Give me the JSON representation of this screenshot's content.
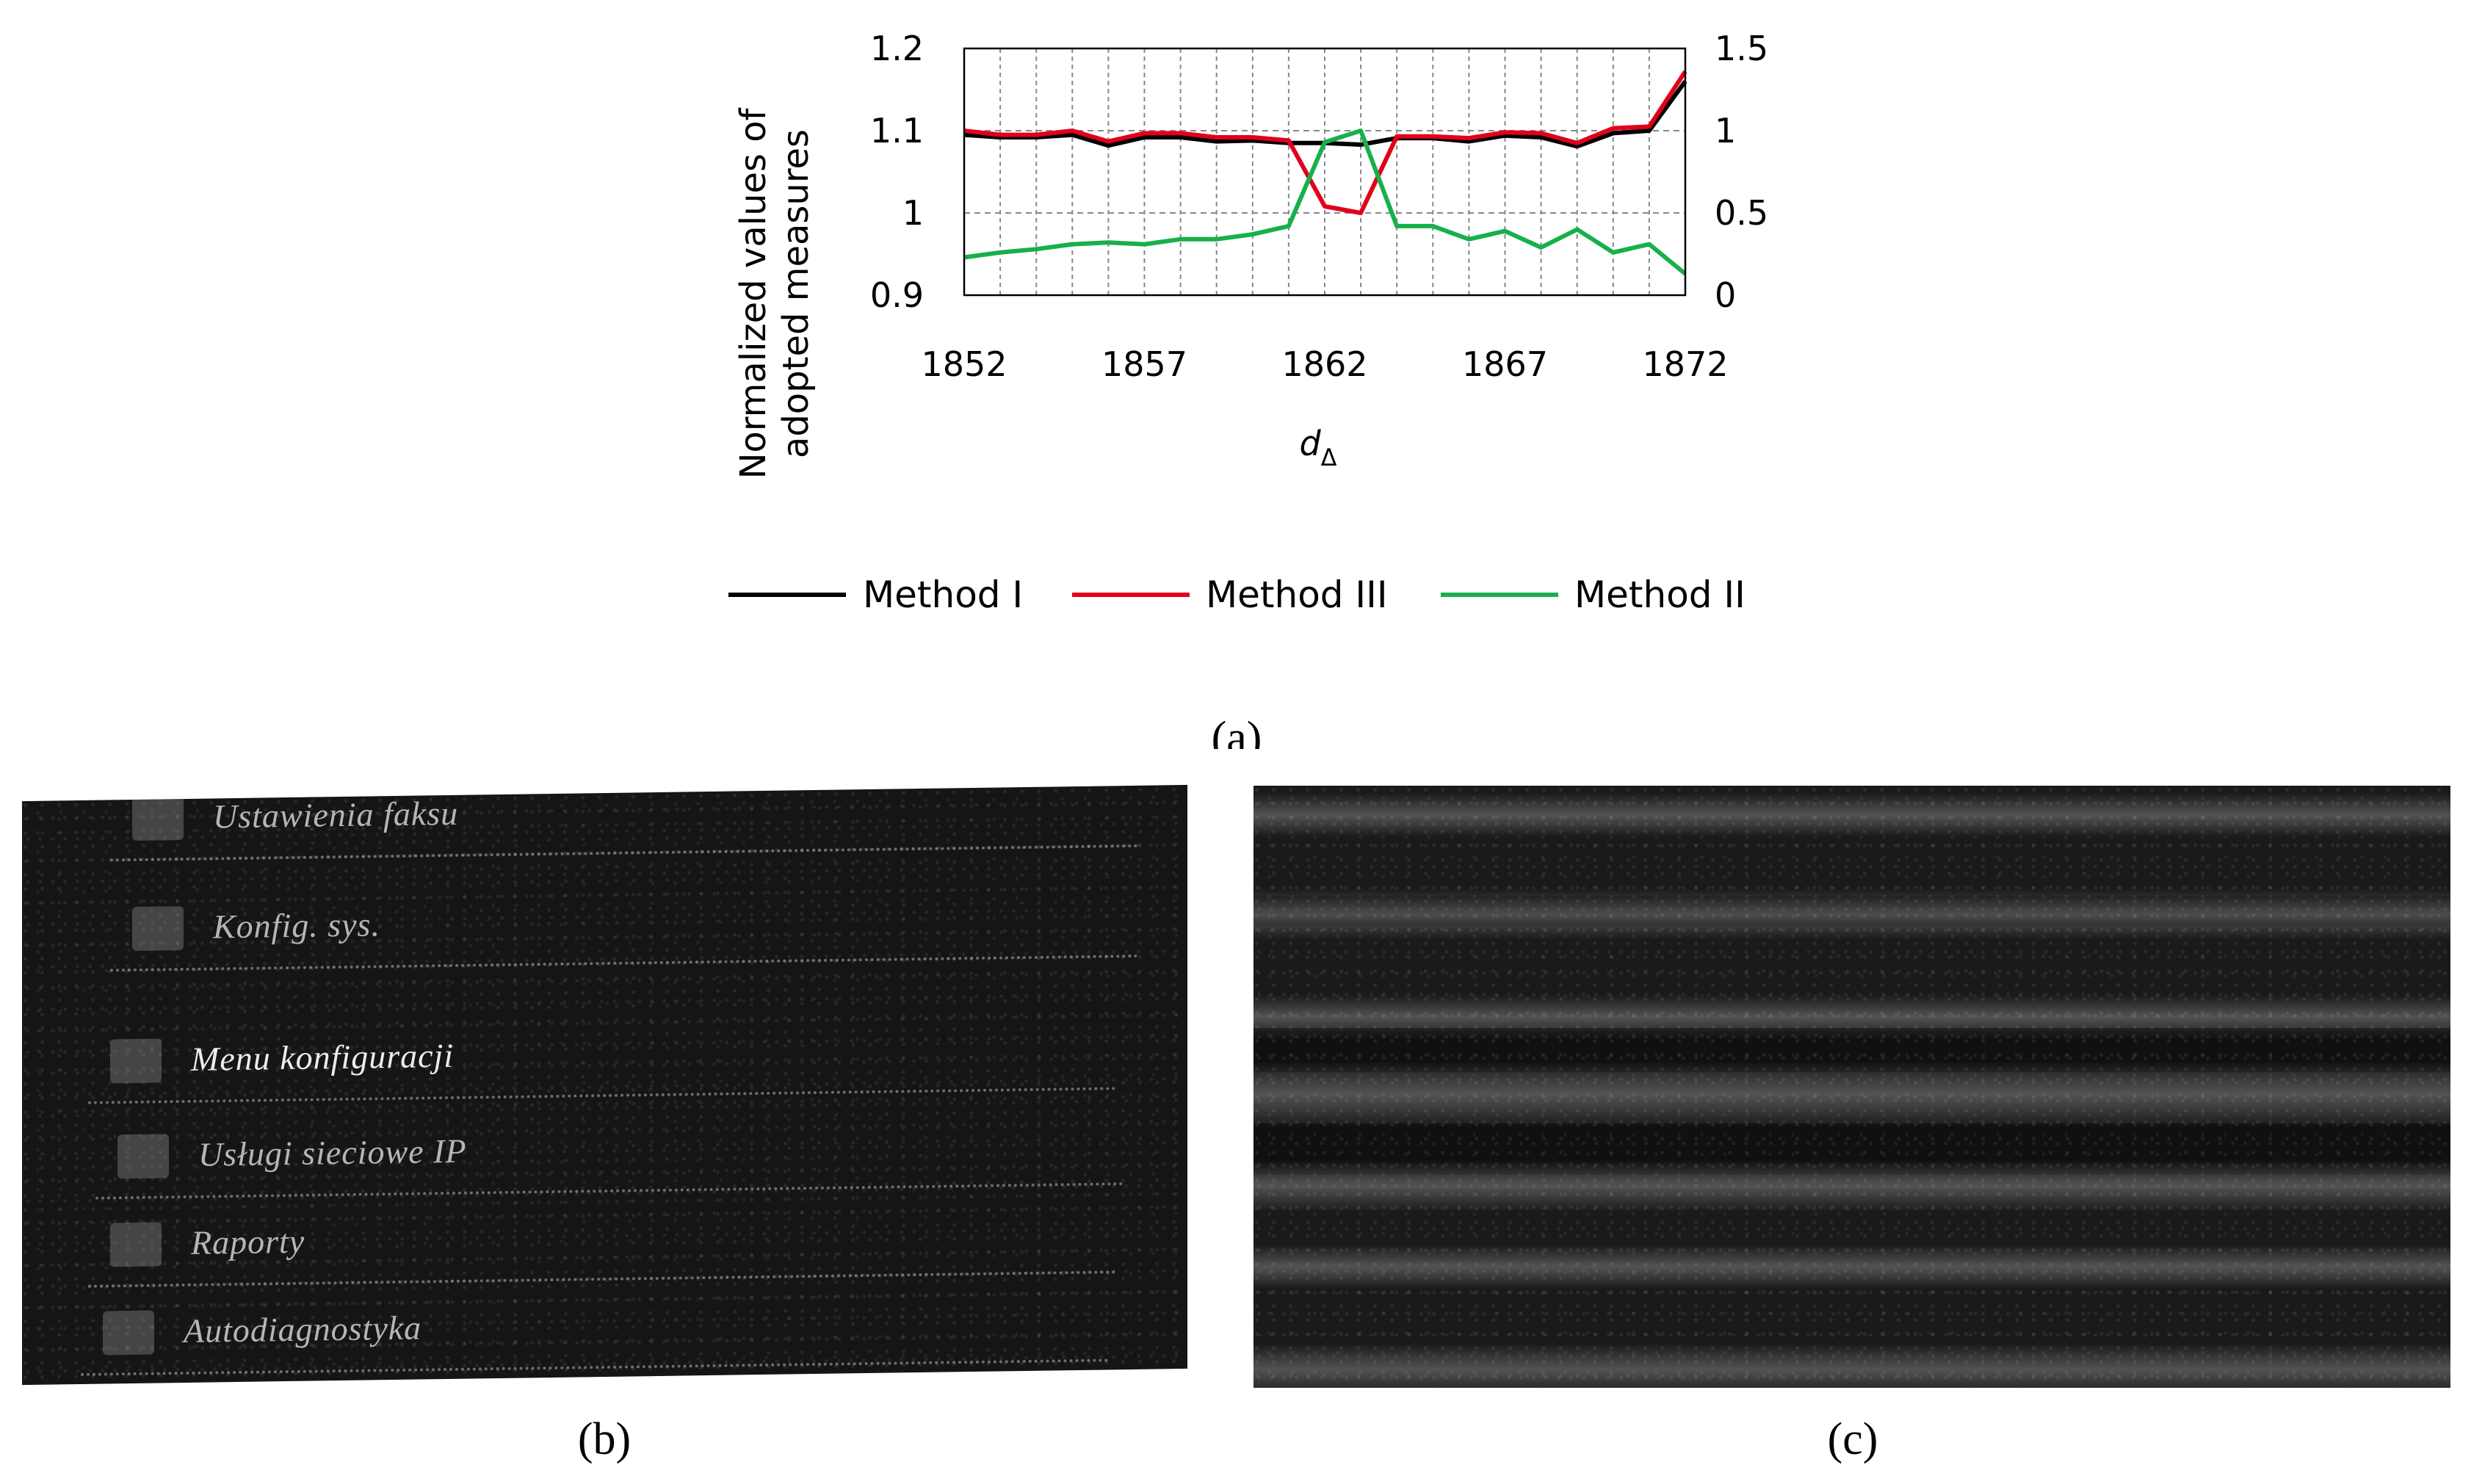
{
  "chart_data": {
    "type": "line",
    "title": "",
    "xlabel": "d",
    "xlabel_subscript": "Δ",
    "ylabel_lines": [
      "Normalized values of",
      "adopted measures"
    ],
    "x": [
      1852,
      1853,
      1854,
      1855,
      1856,
      1857,
      1858,
      1859,
      1860,
      1861,
      1862,
      1863,
      1864,
      1865,
      1866,
      1867,
      1868,
      1869,
      1870,
      1871,
      1872
    ],
    "x_ticks": [
      "1852",
      "1857",
      "1862",
      "1867",
      "1872"
    ],
    "x_tick_values": [
      1852,
      1857,
      1862,
      1867,
      1872
    ],
    "xlim": [
      1852,
      1872
    ],
    "ylim_left": [
      0.9,
      1.2
    ],
    "y_ticks_left": [
      "0.9",
      "1",
      "1.1",
      "1.2"
    ],
    "y_tick_values_left": [
      0.9,
      1.0,
      1.1,
      1.2
    ],
    "ylim_right": [
      0,
      1.5
    ],
    "y_ticks_right": [
      "0",
      "0.5",
      "1",
      "1.5"
    ],
    "y_tick_values_right": [
      0,
      0.5,
      1.0,
      1.5
    ],
    "legend_position": "bottom",
    "series": [
      {
        "name": "Method I",
        "axis": "left",
        "color": "#000000",
        "values": [
          1.095,
          1.092,
          1.092,
          1.095,
          1.082,
          1.092,
          1.092,
          1.087,
          1.088,
          1.085,
          1.085,
          1.083,
          1.091,
          1.091,
          1.087,
          1.094,
          1.092,
          1.081,
          1.097,
          1.1,
          1.16
        ]
      },
      {
        "name": "Method III",
        "axis": "left",
        "color": "#e2001a",
        "values": [
          1.1,
          1.095,
          1.095,
          1.1,
          1.087,
          1.097,
          1.097,
          1.092,
          1.092,
          1.088,
          1.008,
          1.0,
          1.093,
          1.093,
          1.091,
          1.098,
          1.097,
          1.085,
          1.103,
          1.105,
          1.172
        ]
      },
      {
        "name": "Method II",
        "axis": "right",
        "color": "#17b04a",
        "values": [
          0.23,
          0.26,
          0.28,
          0.31,
          0.32,
          0.31,
          0.34,
          0.34,
          0.37,
          0.42,
          0.93,
          1.0,
          0.42,
          0.42,
          0.34,
          0.39,
          0.29,
          0.4,
          0.26,
          0.31,
          0.13
        ]
      }
    ]
  },
  "captions": {
    "a": "(a)",
    "b": "(b)",
    "c": "(c)"
  },
  "panel_b": {
    "menu_items": [
      "Ustawienia faksu",
      "Konfig. sys.",
      "Menu konfiguracji",
      "Usługi sieciowe IP",
      "Raporty",
      "Autodiagnostyka"
    ]
  },
  "colors": {
    "grid": "#888888",
    "axis": "#000000"
  }
}
